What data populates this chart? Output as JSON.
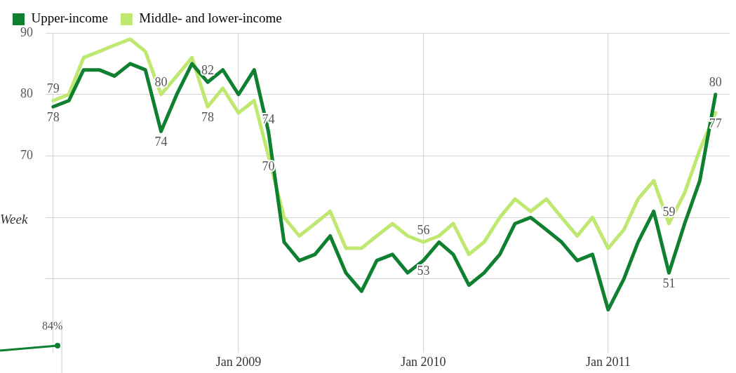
{
  "chart_data": {
    "type": "line",
    "x": [
      "2008-01",
      "2008-02",
      "2008-03",
      "2008-04",
      "2008-05",
      "2008-06",
      "2008-07",
      "2008-08",
      "2008-09",
      "2008-10",
      "2008-11",
      "2008-12",
      "2009-01",
      "2009-02",
      "2009-03",
      "2009-04",
      "2009-05",
      "2009-06",
      "2009-07",
      "2009-08",
      "2009-09",
      "2009-10",
      "2009-11",
      "2009-12",
      "2010-01",
      "2010-02",
      "2010-03",
      "2010-04",
      "2010-05",
      "2010-06",
      "2010-07",
      "2010-08",
      "2010-09",
      "2010-10",
      "2010-11",
      "2010-12",
      "2011-01",
      "2011-02",
      "2011-03",
      "2011-04",
      "2011-05",
      "2011-06",
      "2011-07",
      "2011-08"
    ],
    "series": [
      {
        "name": "Upper-income",
        "color": "#0f7f30",
        "values": [
          78,
          79,
          84,
          84,
          83,
          85,
          84,
          74,
          80,
          85,
          82,
          84,
          80,
          84,
          74,
          56,
          53,
          54,
          57,
          51,
          48,
          53,
          54,
          51,
          53,
          56,
          54,
          49,
          51,
          54,
          59,
          60,
          58,
          56,
          53,
          54,
          45,
          50,
          56,
          61,
          51,
          59,
          66,
          80
        ],
        "value_labels": [
          "78",
          null,
          null,
          null,
          null,
          null,
          null,
          "74",
          null,
          null,
          "82",
          null,
          null,
          null,
          "74",
          null,
          null,
          null,
          null,
          null,
          null,
          null,
          null,
          null,
          "53",
          null,
          null,
          null,
          null,
          null,
          null,
          null,
          null,
          null,
          null,
          null,
          null,
          null,
          null,
          null,
          "51",
          null,
          null,
          "80"
        ]
      },
      {
        "name": "Middle- and lower-income",
        "color": "#bfe870",
        "values": [
          79,
          80,
          86,
          87,
          88,
          89,
          87,
          80,
          83,
          86,
          78,
          81,
          77,
          79,
          70,
          60,
          57,
          59,
          61,
          55,
          55,
          57,
          59,
          57,
          56,
          57,
          59,
          54,
          56,
          60,
          63,
          61,
          63,
          60,
          57,
          60,
          55,
          58,
          63,
          66,
          59,
          64,
          71,
          77
        ],
        "value_labels": [
          "79",
          null,
          null,
          null,
          null,
          null,
          null,
          "80",
          null,
          null,
          "78",
          null,
          null,
          null,
          "70",
          null,
          null,
          null,
          null,
          null,
          null,
          null,
          null,
          null,
          "56",
          null,
          null,
          null,
          null,
          null,
          null,
          null,
          null,
          null,
          null,
          null,
          null,
          null,
          null,
          null,
          "59",
          null,
          null,
          "77"
        ]
      }
    ],
    "xlim": [
      "2007-12-17",
      "2011-08-29"
    ],
    "xticks": [
      {
        "value": "2008-01",
        "label": null
      },
      {
        "value": "2009-01",
        "label": "Jan 2009"
      },
      {
        "value": "2010-01",
        "label": "Jan 2010"
      },
      {
        "value": "2011-01",
        "label": "Jan 2011"
      }
    ],
    "ylim": [
      38,
      90
    ],
    "yticks": [
      {
        "value": 50,
        "label": null
      },
      {
        "value": 60,
        "label": null
      },
      70,
      80,
      90
    ],
    "grid": true,
    "legend": "top left",
    "marker": "none",
    "line_style": "solid",
    "annotations": [
      "Week",
      "84%"
    ]
  }
}
